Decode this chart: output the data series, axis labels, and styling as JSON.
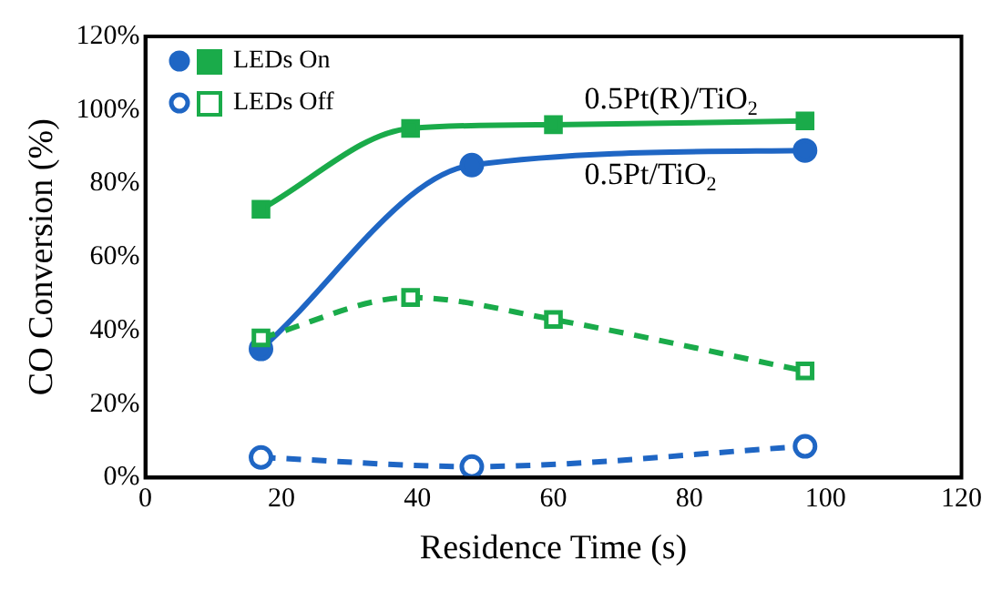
{
  "chart_data": {
    "type": "line",
    "xlabel": "Residence Time (s)",
    "ylabel": "CO Conversion (%)",
    "xlim": [
      0,
      120
    ],
    "xticks": [
      0,
      20,
      40,
      60,
      80,
      100,
      120
    ],
    "ylim": [
      0,
      120
    ],
    "yticks": [
      {
        "value": 0,
        "label": "0%"
      },
      {
        "value": 20,
        "label": "20%"
      },
      {
        "value": 40,
        "label": "40%"
      },
      {
        "value": 60,
        "label": "60%"
      },
      {
        "value": 80,
        "label": "80%"
      },
      {
        "value": 100,
        "label": "100%"
      },
      {
        "value": 120,
        "label": "120%"
      }
    ],
    "grid": false,
    "legend": "top left",
    "series": [
      {
        "name": "LEDs On",
        "color": "#1aab4a",
        "marker": "square",
        "line_style": "solid",
        "x": [
          17,
          39,
          60,
          97
        ],
        "values": [
          73,
          95,
          96,
          97
        ]
      },
      {
        "color": "#1f66c4",
        "marker": "circle",
        "line_style": "solid",
        "x": [
          17,
          48,
          97
        ],
        "values": [
          35,
          85,
          89
        ]
      },
      {
        "name": "LEDs Off",
        "color": "#1aab4a",
        "marker": "square",
        "line_style": "dashed",
        "x": [
          17,
          39,
          60,
          97
        ],
        "values": [
          38,
          49,
          43,
          29
        ]
      },
      {
        "color": "#1f66c4",
        "marker": "circle",
        "line_style": "dashed",
        "x": [
          17,
          48,
          97
        ],
        "values": [
          5.5,
          3,
          8.5
        ]
      }
    ],
    "annotations": [
      "0.5Pt(R)/TiO$_{2}$",
      "0.5Pt/TiO$_{2}$"
    ]
  }
}
